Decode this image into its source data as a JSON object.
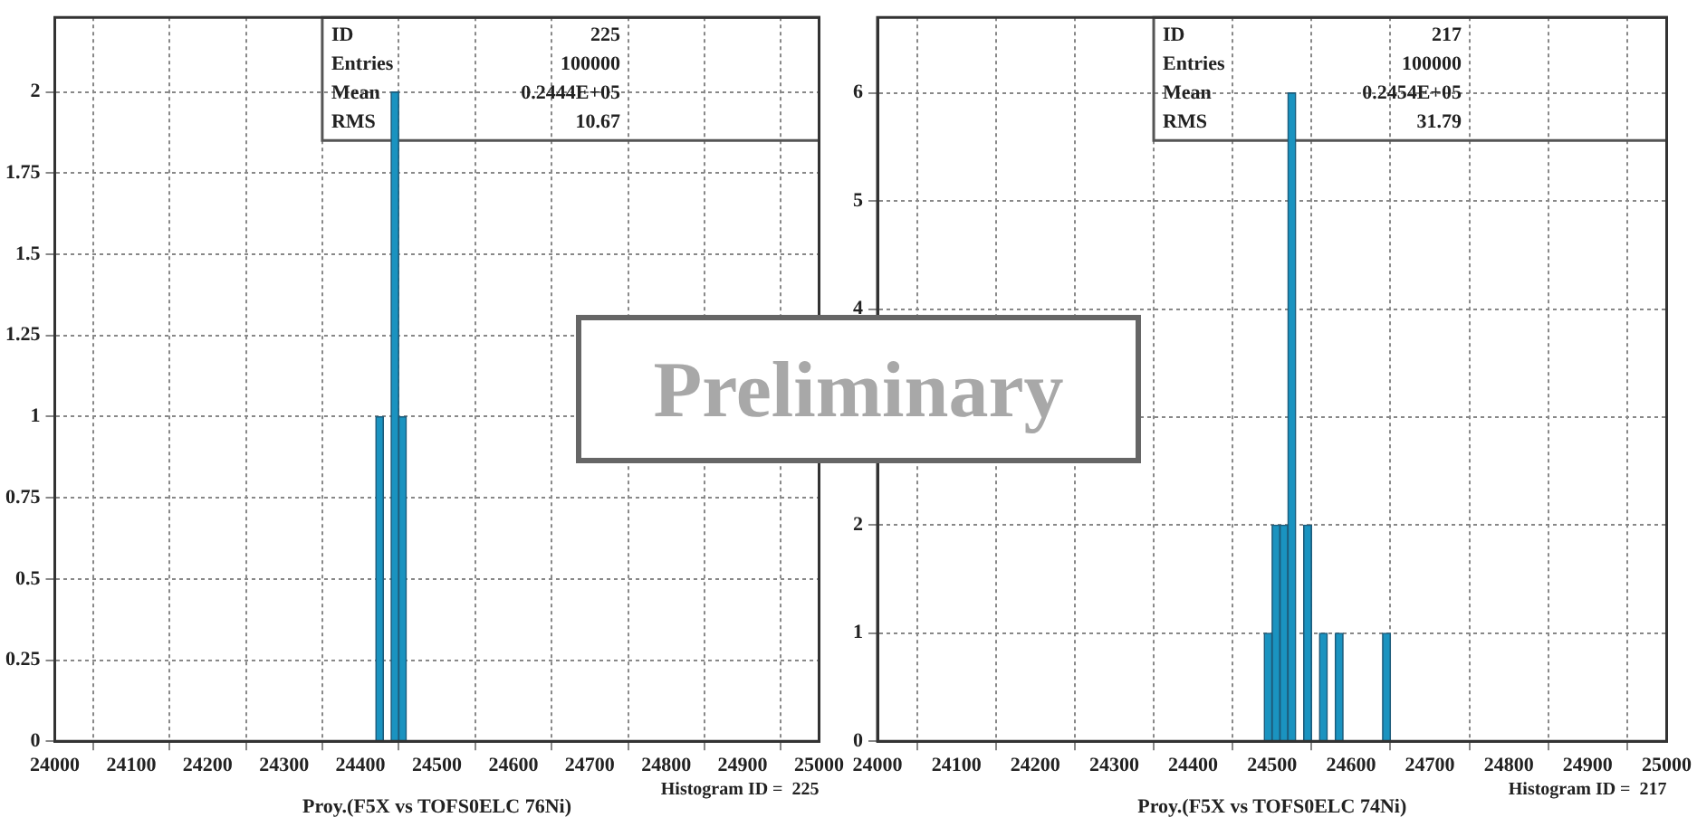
{
  "chart_data": [
    {
      "type": "histogram",
      "xlabel": "Proy.(F5X vs TOFS0ELC 76Ni)",
      "bins": [
        24420,
        24430,
        24440,
        24450,
        24460
      ],
      "values": [
        1,
        0,
        2,
        1
      ],
      "color": "#1a93c0",
      "xlim": [
        24000,
        25000
      ],
      "xticks": [
        24000,
        24100,
        24200,
        24300,
        24400,
        24500,
        24600,
        24700,
        24800,
        24900,
        25000
      ],
      "ylim": [
        0,
        2.23
      ],
      "yticks": [
        0,
        0.25,
        0.5,
        0.75,
        1,
        1.25,
        1.5,
        1.75,
        2
      ],
      "grid": true,
      "legend": false,
      "annotations": [
        "ID",
        "225",
        "Entries",
        "100000",
        "Mean",
        "0.2444E+05",
        "RMS",
        "10.67",
        "Histogram ID =  225",
        "Preliminary"
      ]
    },
    {
      "type": "histogram",
      "xlabel": "Proy.(F5X vs TOFS0ELC 74Ni)",
      "bins": [
        24490,
        24500,
        24510,
        24520,
        24530,
        24540,
        24550,
        24560,
        24570,
        24580,
        24590,
        24600,
        24610,
        24620,
        24630,
        24640,
        24650
      ],
      "values": [
        1,
        2,
        2,
        6,
        0,
        2,
        0,
        1,
        0,
        1,
        0,
        0,
        0,
        0,
        0,
        1
      ],
      "color": "#1a93c0",
      "xlim": [
        24000,
        25000
      ],
      "xticks": [
        24000,
        24100,
        24200,
        24300,
        24400,
        24500,
        24600,
        24700,
        24800,
        24900,
        25000
      ],
      "ylim": [
        0,
        6.7
      ],
      "yticks": [
        0,
        1,
        2,
        {
          "value": 3,
          "label": null
        },
        4,
        5,
        6
      ],
      "grid": true,
      "legend": false,
      "annotations": [
        "ID",
        "217",
        "Entries",
        "100000",
        "Mean",
        "0.2454E+05",
        "RMS",
        "31.79",
        "Histogram ID =  217"
      ]
    }
  ]
}
